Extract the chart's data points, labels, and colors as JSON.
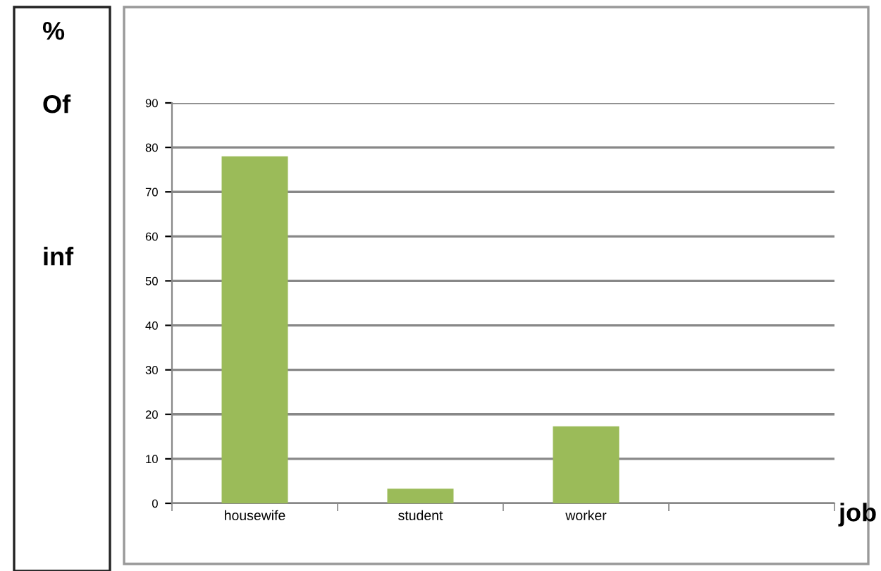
{
  "chart_data": {
    "type": "bar",
    "ylabel": "% Of inf",
    "xlabel": "job",
    "categories": [
      "housewife",
      "student",
      "worker",
      null
    ],
    "values": [
      78,
      3.3,
      17.3,
      null
    ],
    "color": "#9bbb59",
    "ylim": [
      0,
      90
    ],
    "yticks": [
      0,
      10,
      20,
      30,
      40,
      50,
      60,
      70,
      80,
      90
    ],
    "grid": "y",
    "legend": false
  }
}
